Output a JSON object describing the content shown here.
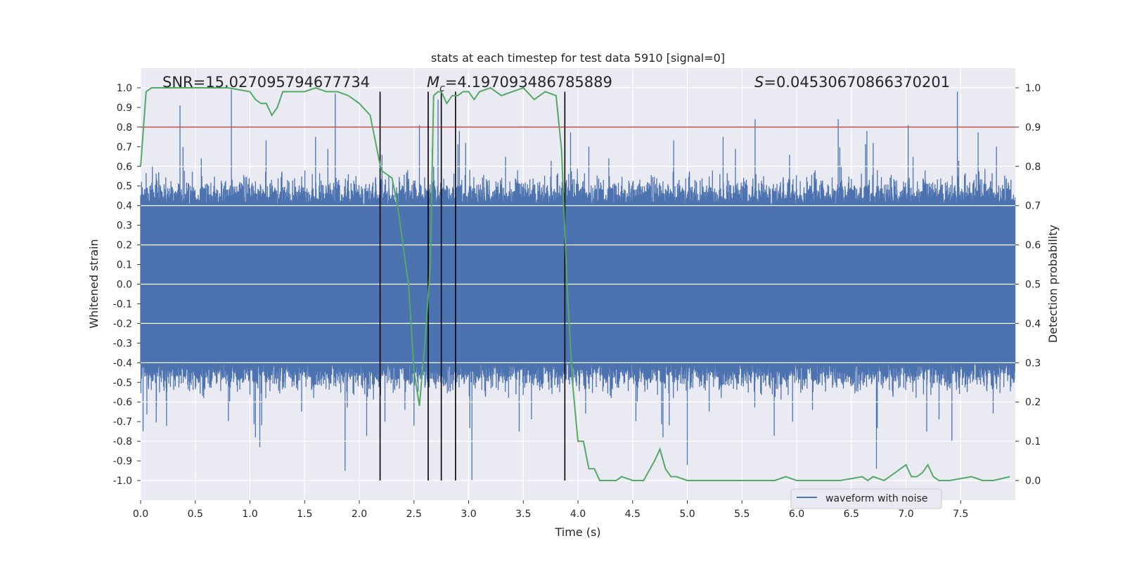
{
  "chart_data": {
    "type": "line",
    "title": "stats at each timestep for test data 5910 [signal=0]",
    "xlabel": "Time (s)",
    "ylabel": "Whitened strain",
    "y2label": "Detection probability",
    "xlim": [
      0.0,
      8.0
    ],
    "ylim": [
      -1.1,
      1.1
    ],
    "y2lim": [
      -0.05,
      1.05
    ],
    "xticks": [
      "0.0",
      "0.5",
      "1.0",
      "1.5",
      "2.0",
      "2.5",
      "3.0",
      "3.5",
      "4.0",
      "4.5",
      "5.0",
      "5.5",
      "6.0",
      "6.5",
      "7.0",
      "7.5"
    ],
    "xtick_values": [
      0,
      0.5,
      1,
      1.5,
      2,
      2.5,
      3,
      3.5,
      4,
      4.5,
      5,
      5.5,
      6,
      6.5,
      7,
      7.5
    ],
    "yticks": [
      "1.0",
      "0.9",
      "0.8",
      "0.7",
      "0.6",
      "0.5",
      "0.4",
      "0.3",
      "0.2",
      "0.1",
      "0.0",
      "-0.1",
      "-0.2",
      "-0.3",
      "-0.4",
      "-0.5",
      "-0.6",
      "-0.7",
      "-0.8",
      "-0.9",
      "-1.0"
    ],
    "ytick_values": [
      1.0,
      0.9,
      0.8,
      0.7,
      0.6,
      0.5,
      0.4,
      0.3,
      0.2,
      0.1,
      0.0,
      -0.1,
      -0.2,
      -0.3,
      -0.4,
      -0.5,
      -0.6,
      -0.7,
      -0.8,
      -0.9,
      -1.0
    ],
    "y2ticks": [
      "1.0",
      "0.9",
      "0.8",
      "0.7",
      "0.6",
      "0.5",
      "0.4",
      "0.3",
      "0.2",
      "0.1",
      "0.0"
    ],
    "y2tick_values": [
      1.0,
      0.9,
      0.8,
      0.7,
      0.6,
      0.5,
      0.4,
      0.3,
      0.2,
      0.1,
      0.0
    ],
    "grid": true,
    "legend": {
      "placement": "lower-right",
      "entries": [
        {
          "label": "waveform with noise",
          "color": "#4c72b0"
        }
      ]
    },
    "annotations": {
      "snr": "SNR=15.027095794677734",
      "mc_symbol": "M",
      "mc_subscript": "c",
      "mc_value": "=4.197093486785889",
      "s_symbol": "S",
      "s_value": "=0.04530670866370201"
    },
    "series": [
      {
        "name": "waveform with noise",
        "axis": "left",
        "color": "#4c72b0",
        "style": "noise band",
        "typical_amplitude": 0.4,
        "notable_peaks": [
          {
            "x": 0.36,
            "y": 0.91
          },
          {
            "x": 0.83,
            "y": 0.99
          },
          {
            "x": 1.78,
            "y": 0.97
          },
          {
            "x": 2.55,
            "y": 0.81
          },
          {
            "x": 2.72,
            "y": 0.94
          },
          {
            "x": 5.62,
            "y": 0.84
          },
          {
            "x": 7.47,
            "y": 0.98
          },
          {
            "x": 6.38,
            "y": 0.84
          },
          {
            "x": 7.02,
            "y": 0.81
          }
        ],
        "notable_troughs": [
          {
            "x": 1.87,
            "y": -0.95
          },
          {
            "x": 3.03,
            "y": -1.0
          },
          {
            "x": 5.0,
            "y": -0.92
          },
          {
            "x": 6.73,
            "y": -0.94
          },
          {
            "x": 7.42,
            "y": -0.8
          },
          {
            "x": 2.5,
            "y": -0.72
          },
          {
            "x": 1.09,
            "y": -0.83
          }
        ]
      },
      {
        "name": "",
        "axis": "right",
        "color": "#55a868",
        "x": [
          0.0,
          0.05,
          0.1,
          0.2,
          0.5,
          0.8,
          1.0,
          1.05,
          1.1,
          1.15,
          1.2,
          1.25,
          1.3,
          1.35,
          1.4,
          1.5,
          1.6,
          1.7,
          1.8,
          1.9,
          2.0,
          2.1,
          2.15,
          2.2,
          2.25,
          2.3,
          2.35,
          2.4,
          2.45,
          2.5,
          2.55,
          2.6,
          2.65,
          2.68,
          2.72,
          2.75,
          2.8,
          2.85,
          2.9,
          2.95,
          3.0,
          3.05,
          3.1,
          3.2,
          3.3,
          3.4,
          3.5,
          3.6,
          3.7,
          3.8,
          3.85,
          3.9,
          3.95,
          4.0,
          4.05,
          4.1,
          4.15,
          4.2,
          4.25,
          4.3,
          4.35,
          4.4,
          4.5,
          4.6,
          4.7,
          4.75,
          4.8,
          4.85,
          4.9,
          5.0,
          5.2,
          5.5,
          5.8,
          5.9,
          6.0,
          6.1,
          6.2,
          6.4,
          6.6,
          6.65,
          6.7,
          6.8,
          6.9,
          7.0,
          7.05,
          7.1,
          7.15,
          7.2,
          7.25,
          7.3,
          7.4,
          7.6,
          7.7,
          7.8,
          7.95
        ],
        "values": [
          0.8,
          0.99,
          1.0,
          1.0,
          1.0,
          1.0,
          0.99,
          0.97,
          0.96,
          0.96,
          0.93,
          0.95,
          0.99,
          0.99,
          0.99,
          0.99,
          1.0,
          0.99,
          0.99,
          0.98,
          0.96,
          0.93,
          0.86,
          0.79,
          0.78,
          0.77,
          0.7,
          0.6,
          0.5,
          0.28,
          0.19,
          0.35,
          0.55,
          0.98,
          0.99,
          0.99,
          0.96,
          0.98,
          0.98,
          0.99,
          0.99,
          0.97,
          0.99,
          1.0,
          0.98,
          0.99,
          1.0,
          0.97,
          0.99,
          0.98,
          0.84,
          0.5,
          0.25,
          0.1,
          0.1,
          0.03,
          0.03,
          0.0,
          0.0,
          0.0,
          0.0,
          0.01,
          0.0,
          0.0,
          0.05,
          0.08,
          0.03,
          0.01,
          0.01,
          0.0,
          0.0,
          0.0,
          0.0,
          0.01,
          0.0,
          0.0,
          0.0,
          0.0,
          0.01,
          0.0,
          0.01,
          0.0,
          0.02,
          0.04,
          0.01,
          0.01,
          0.02,
          0.04,
          0.01,
          0.0,
          0.0,
          0.01,
          0.0,
          0.0,
          0.01
        ]
      }
    ],
    "threshold_line": {
      "axis": "right",
      "y": 0.9,
      "color": "#c44e52"
    },
    "vertical_lines": [
      2.19,
      2.63,
      2.75,
      2.88,
      3.88
    ],
    "vertical_lines_ylim": [
      -1.0,
      0.98
    ],
    "vertical_lines_color": "#000000"
  }
}
